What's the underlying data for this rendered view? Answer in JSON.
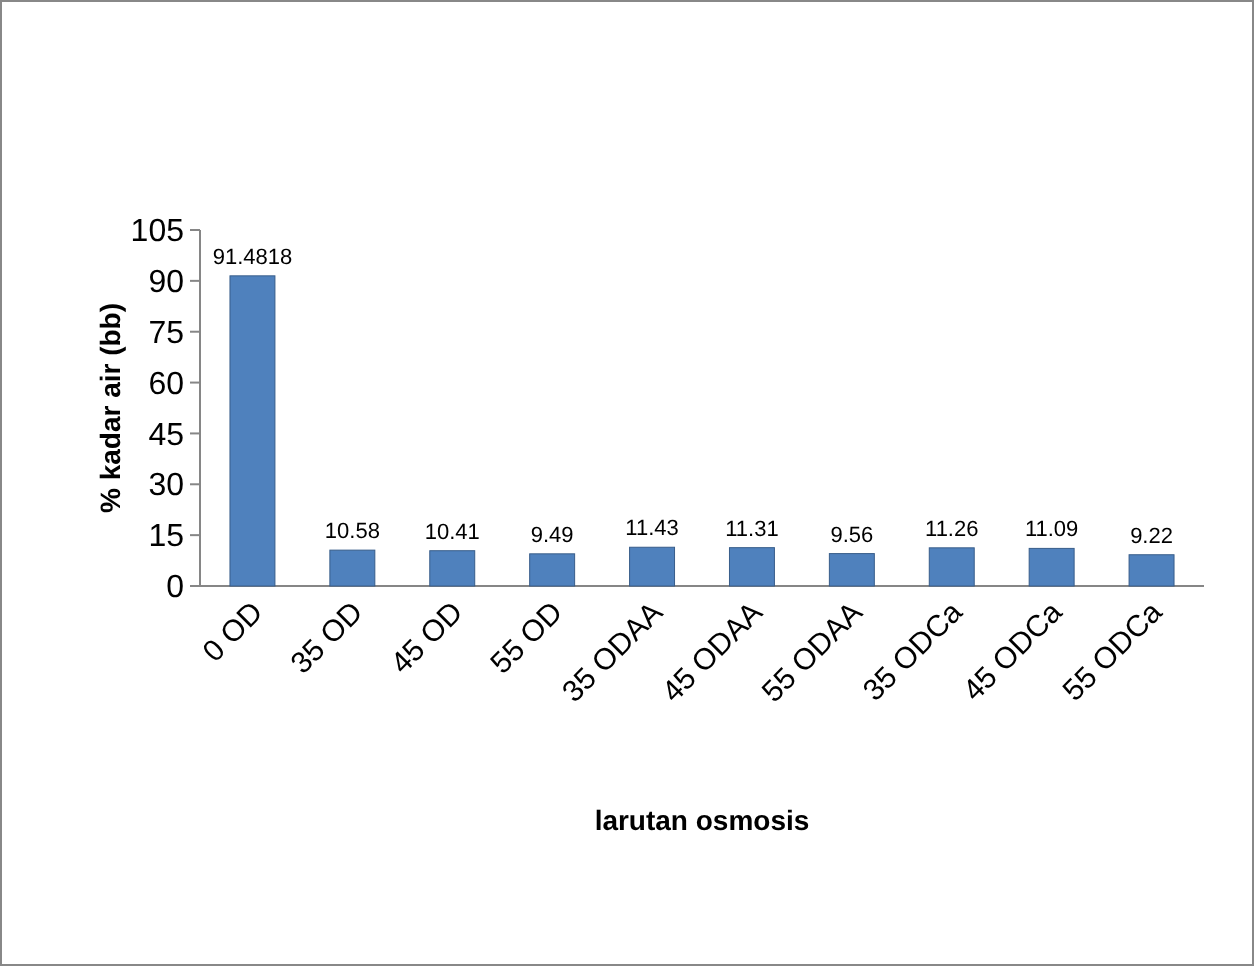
{
  "chart_data": {
    "type": "bar",
    "xlabel": "larutan osmosis",
    "ylabel": "% kadar air (bb)",
    "categories": [
      "0 OD",
      "35 OD",
      "45 OD",
      "55 OD",
      "35 ODAA",
      "45 ODAA",
      "55 ODAA",
      "35 ODCa",
      "45 ODCa",
      "55 ODCa"
    ],
    "values": [
      91.4818,
      10.58,
      10.41,
      9.49,
      11.43,
      11.31,
      9.56,
      11.26,
      11.09,
      9.22
    ],
    "color": "#4f81bd",
    "ylim": [
      0,
      105
    ],
    "yticks": [
      0,
      15,
      30,
      45,
      60,
      75,
      90,
      105
    ],
    "data_labels": true,
    "grid": false
  }
}
